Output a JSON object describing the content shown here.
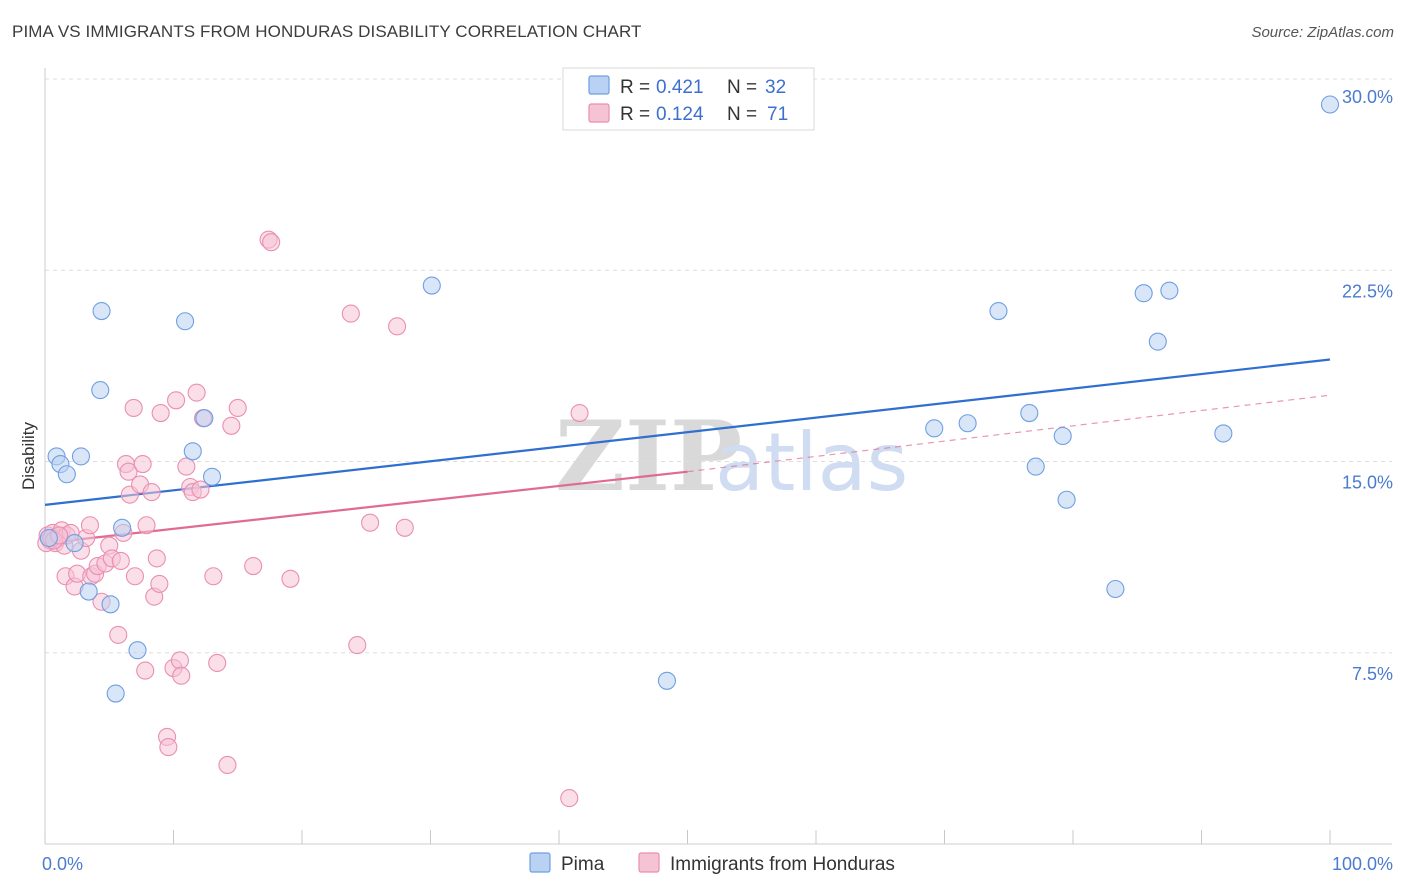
{
  "title": "PIMA VS IMMIGRANTS FROM HONDURAS DISABILITY CORRELATION CHART",
  "source": "Source: ZipAtlas.com",
  "watermark": {
    "zip": "ZIP",
    "atlas": "atlas"
  },
  "colors": {
    "pima": "#6f9fe2",
    "pima_fill": "#b9d1f3",
    "pima_line": "#2f6fd0",
    "honduras": "#ea8fb1",
    "honduras_fill": "#f6c3d5",
    "honduras_line": "#e06a95",
    "axis_text": "#4a7bd0",
    "grid": "#dddddd"
  },
  "legend": {
    "rows": [
      {
        "r_label": "R = ",
        "r_value": "0.421",
        "n_label": "N = ",
        "n_value": "32"
      },
      {
        "r_label": "R = ",
        "r_value": "0.124",
        "n_label": "N = ",
        "n_value": "71"
      }
    ]
  },
  "bottom_legend": {
    "pima": "Pima",
    "honduras": "Immigrants from Honduras"
  },
  "chart_data": {
    "type": "scatter",
    "title": "PIMA VS IMMIGRANTS FROM HONDURAS DISABILITY CORRELATION CHART",
    "xlabel": "",
    "ylabel": "Disability",
    "xlim": [
      0,
      100
    ],
    "ylim": [
      0,
      30
    ],
    "x_tick_labels": [
      "0.0%",
      "100.0%"
    ],
    "y_ticks": [
      7.5,
      15.0,
      22.5,
      30.0
    ],
    "y_tick_labels": [
      "7.5%",
      "15.0%",
      "22.5%",
      "30.0%"
    ],
    "grid": true,
    "legend_position": "top-center",
    "series": [
      {
        "name": "Pima",
        "points": [
          [
            0.9,
            15.2
          ],
          [
            1.2,
            14.9
          ],
          [
            1.7,
            14.5
          ],
          [
            2.8,
            15.2
          ],
          [
            4.3,
            17.8
          ],
          [
            4.4,
            20.9
          ],
          [
            3.4,
            9.9
          ],
          [
            2.3,
            11.8
          ],
          [
            5.1,
            9.4
          ],
          [
            5.5,
            5.9
          ],
          [
            6.0,
            12.4
          ],
          [
            7.2,
            7.6
          ],
          [
            10.9,
            20.5
          ],
          [
            11.5,
            15.4
          ],
          [
            12.4,
            16.7
          ],
          [
            13.0,
            14.4
          ],
          [
            30.1,
            21.9
          ],
          [
            48.4,
            6.4
          ],
          [
            69.2,
            16.3
          ],
          [
            71.8,
            16.5
          ],
          [
            74.2,
            20.9
          ],
          [
            76.6,
            16.9
          ],
          [
            77.1,
            14.8
          ],
          [
            79.2,
            16.0
          ],
          [
            79.5,
            13.5
          ],
          [
            83.3,
            10.0
          ],
          [
            85.5,
            21.6
          ],
          [
            86.6,
            19.7
          ],
          [
            87.5,
            21.7
          ],
          [
            91.7,
            16.1
          ],
          [
            100.0,
            29.0
          ],
          [
            0.3,
            12.0
          ]
        ],
        "trend": {
          "x": [
            0,
            100
          ],
          "y": [
            13.3,
            19.0
          ],
          "style": "solid"
        }
      },
      {
        "name": "Immigrants from Honduras",
        "points": [
          [
            0.2,
            12.1
          ],
          [
            0.4,
            11.9
          ],
          [
            0.6,
            12.2
          ],
          [
            0.8,
            11.8
          ],
          [
            1.0,
            12.0
          ],
          [
            1.3,
            12.3
          ],
          [
            1.5,
            11.7
          ],
          [
            1.7,
            12.1
          ],
          [
            2.0,
            12.2
          ],
          [
            1.6,
            10.5
          ],
          [
            2.3,
            10.1
          ],
          [
            2.5,
            10.6
          ],
          [
            2.8,
            11.5
          ],
          [
            3.2,
            12.0
          ],
          [
            3.5,
            12.5
          ],
          [
            3.6,
            10.5
          ],
          [
            3.9,
            10.6
          ],
          [
            4.1,
            10.9
          ],
          [
            4.4,
            9.5
          ],
          [
            4.7,
            11.0
          ],
          [
            5.0,
            11.7
          ],
          [
            5.2,
            11.2
          ],
          [
            5.7,
            8.2
          ],
          [
            5.9,
            11.1
          ],
          [
            6.1,
            12.2
          ],
          [
            6.3,
            14.9
          ],
          [
            6.5,
            14.6
          ],
          [
            6.6,
            13.7
          ],
          [
            6.9,
            17.1
          ],
          [
            7.0,
            10.5
          ],
          [
            7.4,
            14.1
          ],
          [
            7.6,
            14.9
          ],
          [
            7.8,
            6.8
          ],
          [
            7.9,
            12.5
          ],
          [
            8.3,
            13.8
          ],
          [
            8.5,
            9.7
          ],
          [
            8.7,
            11.2
          ],
          [
            8.9,
            10.2
          ],
          [
            9.0,
            16.9
          ],
          [
            9.5,
            4.2
          ],
          [
            9.6,
            3.8
          ],
          [
            10.0,
            6.9
          ],
          [
            10.2,
            17.4
          ],
          [
            10.5,
            7.2
          ],
          [
            10.6,
            6.6
          ],
          [
            11.0,
            14.8
          ],
          [
            11.3,
            14.0
          ],
          [
            11.5,
            13.8
          ],
          [
            11.8,
            17.7
          ],
          [
            12.1,
            13.9
          ],
          [
            12.3,
            16.7
          ],
          [
            13.1,
            10.5
          ],
          [
            13.4,
            7.1
          ],
          [
            14.2,
            3.1
          ],
          [
            14.5,
            16.4
          ],
          [
            15.0,
            17.1
          ],
          [
            16.2,
            10.9
          ],
          [
            17.4,
            23.7
          ],
          [
            17.6,
            23.6
          ],
          [
            19.1,
            10.4
          ],
          [
            23.8,
            20.8
          ],
          [
            24.3,
            7.8
          ],
          [
            25.3,
            12.6
          ],
          [
            27.4,
            20.3
          ],
          [
            28.0,
            12.4
          ],
          [
            40.8,
            1.8
          ],
          [
            41.6,
            16.9
          ],
          [
            0.1,
            11.8
          ],
          [
            0.5,
            12.0
          ],
          [
            0.7,
            11.9
          ],
          [
            1.1,
            12.1
          ]
        ],
        "trend": {
          "x": [
            0,
            50,
            100
          ],
          "y": [
            11.8,
            14.6,
            17.6
          ],
          "style": "solid-then-dashed"
        }
      }
    ]
  }
}
